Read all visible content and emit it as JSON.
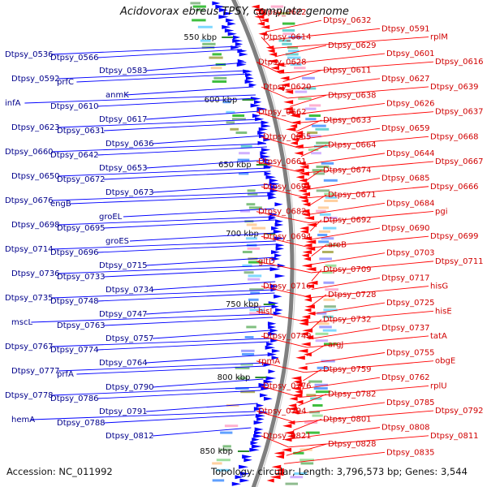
{
  "title": "Acidovorax ebreus TPSY, complete genome",
  "footer": {
    "accession": "Accession: NC_011992",
    "topology": "Topology: circular; Length: 3,796,573 bp; Genes: 3,544"
  },
  "colors": {
    "forward_strand": "#0000ff",
    "reverse_strand": "#ff0000",
    "backbone": "#7f7f7f",
    "forward_label": "#00008b",
    "reverse_label": "#d00000",
    "scale_tick": "#2e8b2e"
  },
  "scale_ticks": [
    "550 kbp",
    "600 kbp",
    "650 kbp",
    "700 kbp",
    "750 kbp",
    "800 kbp",
    "850 kbp"
  ],
  "left_labels": [
    "Dtpsy_0536",
    "Dtpsy_0566",
    "Dtpsy_0583",
    "Dtpsy_0592",
    "prfC",
    "anmK",
    "infA",
    "Dtpsy_0610",
    "Dtpsy_0617",
    "Dtpsy_0623",
    "Dtpsy_0631",
    "Dtpsy_0636",
    "Dtpsy_0660",
    "Dtpsy_0642",
    "Dtpsy_0653",
    "Dtpsy_0650",
    "Dtpsy_0672",
    "Dtpsy_0673",
    "Dtpsy_0676",
    "engB",
    "groEL",
    "Dtpsy_0698",
    "Dtpsy_0695",
    "groES",
    "Dtpsy_0714",
    "Dtpsy_0696",
    "Dtpsy_0715",
    "Dtpsy_0736",
    "Dtpsy_0733",
    "Dtpsy_0734",
    "Dtpsy_0735",
    "Dtpsy_0748",
    "Dtpsy_0747",
    "mscL",
    "Dtpsy_0763",
    "Dtpsy_0757",
    "Dtpsy_0767",
    "Dtpsy_0774",
    "Dtpsy_0764",
    "Dtpsy_0777",
    "prfA",
    "Dtpsy_0790",
    "Dtpsy_0778",
    "Dtpsy_0786",
    "Dtpsy_0791",
    "hemA",
    "Dtpsy_0788",
    "Dtpsy_0812"
  ],
  "right_labels": [
    "Dtpsy_0622",
    "Dtpsy_0632",
    "Dtpsy_0591",
    "rplM",
    "Dtpsy_0614",
    "Dtpsy_0629",
    "Dtpsy_0601",
    "Dtpsy_0616",
    "Dtpsy_0628",
    "Dtpsy_0611",
    "Dtpsy_0627",
    "Dtpsy_0639",
    "Dtpsy_0620",
    "Dtpsy_0638",
    "Dtpsy_0626",
    "Dtpsy_0637",
    "Dtpsy_0662",
    "Dtpsy_0633",
    "Dtpsy_0659",
    "Dtpsy_0668",
    "Dtpsy_0655",
    "Dtpsy_0664",
    "Dtpsy_0644",
    "Dtpsy_0667",
    "Dtpsy_0661",
    "Dtpsy_0674",
    "Dtpsy_0685",
    "Dtpsy_0666",
    "Dtpsy_0691",
    "Dtpsy_0671",
    "Dtpsy_0684",
    "pgi",
    "Dtpsy_0682",
    "Dtpsy_0692",
    "Dtpsy_0690",
    "Dtpsy_0699",
    "Dtpsy_0694",
    "aroB",
    "Dtpsy_0703",
    "Dtpsy_0711",
    "gltD",
    "Dtpsy_0709",
    "Dtpsy_0717",
    "hisG",
    "Dtpsy_0716",
    "Dtpsy_0728",
    "Dtpsy_0725",
    "hisE",
    "hisI",
    "Dtpsy_0732",
    "Dtpsy_0737",
    "tatA",
    "Dtpsy_0749",
    "argJ",
    "Dtpsy_0755",
    "obgE",
    "rpmA",
    "Dtpsy_0759",
    "Dtpsy_0762",
    "rplU",
    "Dtpsy_0776",
    "Dtpsy_0782",
    "Dtpsy_0785",
    "Dtpsy_0792",
    "Dtpsy_0794",
    "Dtpsy_0801",
    "Dtpsy_0808",
    "Dtpsy_0811",
    "Dtpsy_0821",
    "Dtpsy_0828",
    "Dtpsy_0835"
  ]
}
